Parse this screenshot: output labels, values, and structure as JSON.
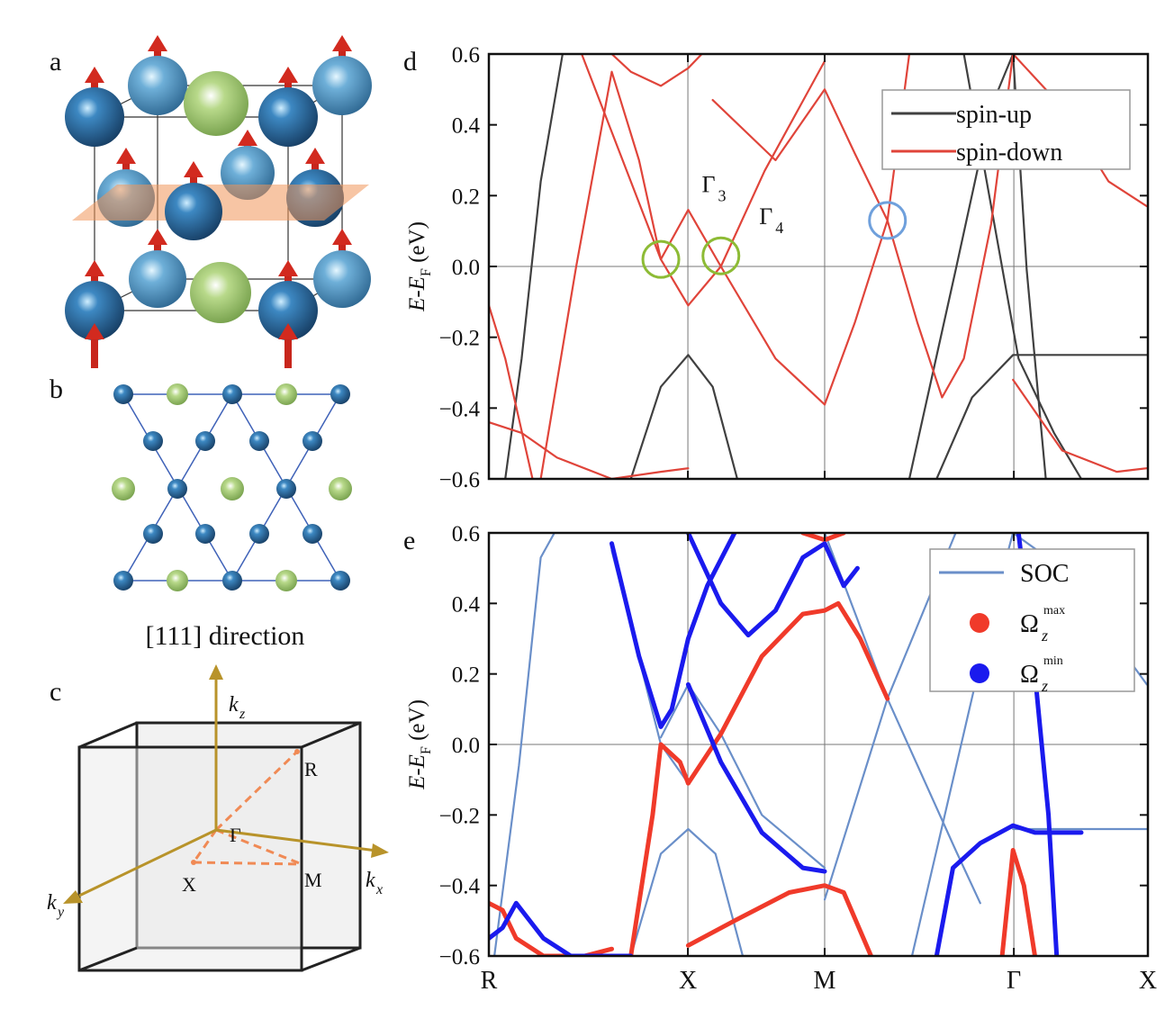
{
  "figure": {
    "panel_labels": [
      "a",
      "b",
      "c"
    ],
    "b_caption": "[111] direction",
    "c_labels": [
      {
        "base": "k",
        "sub": "z"
      },
      {
        "text": "R"
      },
      {
        "text": "Γ"
      },
      {
        "text": "X"
      },
      {
        "text": "M"
      },
      {
        "base": "k",
        "sub": "x"
      },
      {
        "base": "k",
        "sub": "y"
      }
    ]
  },
  "chart_data": [
    {
      "type": "line",
      "label": "d",
      "ylabel": {
        "text": "E-E",
        "sub": "F",
        "after": " (eV)"
      },
      "xlim": [
        0,
        2.414
      ],
      "xticks": [
        0,
        0.729,
        1.23,
        1.923,
        2.414
      ],
      "grid": "x",
      "hline": 0,
      "ylim": [
        -0.6,
        0.6
      ],
      "yticks": [
        {
          "value": -0.6,
          "label": "−0.6"
        },
        {
          "value": -0.4,
          "label": "−0.4"
        },
        {
          "value": -0.2,
          "label": "−0.2"
        },
        {
          "value": 0,
          "label": "0.0"
        },
        0.2,
        0.4,
        0.6
      ],
      "legend": "upper right",
      "series": [
        {
          "name": "spin-up",
          "color": "#404040",
          "legend_symbol": "line",
          "bands": [
            {
              "x": [
                0.06,
                0.12,
                0.19,
                0.27
              ],
              "values": [
                -0.6,
                -0.26,
                0.24,
                0.6
              ]
            },
            {
              "x": [
                0.52,
                0.63,
                0.73,
                0.82,
                0.91
              ],
              "values": [
                -0.6,
                -0.34,
                -0.25,
                -0.34,
                -0.6
              ]
            },
            {
              "x": [
                1.54,
                1.71,
                1.84,
                1.92
              ],
              "values": [
                -0.6,
                -0.01,
                0.45,
                0.6
              ]
            },
            {
              "x": [
                1.64,
                1.77,
                1.92,
                2.17,
                2.41
              ],
              "values": [
                -0.6,
                -0.37,
                -0.25,
                -0.25,
                -0.25
              ]
            },
            {
              "x": [
                1.74,
                1.84,
                1.94,
                2.07,
                2.17
              ],
              "values": [
                0.6,
                0.17,
                -0.26,
                -0.47,
                -0.6
              ]
            },
            {
              "x": [
                1.92,
                1.97,
                2.04
              ],
              "values": [
                0.6,
                -0.01,
                -0.6
              ]
            }
          ]
        },
        {
          "name": "spin-down",
          "color": "#e0443a",
          "legend_symbol": "line",
          "bands": [
            {
              "x": [
                0.19,
                0.32,
                0.45,
                0.55,
                0.63,
                0.73,
                0.85,
                1.01,
                1.23
              ],
              "values": [
                -0.6,
                0,
                0.55,
                0.3,
                0.02,
                -0.11,
                0,
                0.27,
                0.58
              ]
            },
            {
              "x": [
                0.45,
                0.52,
                0.63,
                0.73,
                0.78
              ],
              "values": [
                0.6,
                0.55,
                0.51,
                0.56,
                0.6
              ]
            },
            {
              "x": [
                0.34,
                0.52,
                0.63,
                0.73,
                0.85,
                1.05,
                1.23
              ],
              "values": [
                0.6,
                0.24,
                0.02,
                0.16,
                0,
                -0.26,
                -0.39
              ]
            },
            {
              "x": [
                0.82,
                1.05,
                1.23,
                1.34,
                1.46,
                1.57,
                1.66,
                1.74,
                1.84,
                1.92
              ],
              "values": [
                0.47,
                0.3,
                0.5,
                0.32,
                0.13,
                -0.16,
                -0.37,
                -0.26,
                0.12,
                0.6
              ]
            },
            {
              "x": [
                1.23,
                1.34,
                1.46,
                1.54
              ],
              "values": [
                -0.39,
                -0.16,
                0.13,
                0.6
              ]
            },
            {
              "x": [
                1.92,
                2.1,
                2.27,
                2.41
              ],
              "values": [
                0.6,
                0.45,
                0.24,
                0.17
              ]
            },
            {
              "x": [
                1.92,
                2.1,
                2.3,
                2.41
              ],
              "values": [
                -0.32,
                -0.52,
                -0.58,
                -0.57
              ]
            },
            {
              "x": [
                0,
                0.12,
                0.25,
                0.45,
                0.63,
                0.73
              ],
              "values": [
                -0.44,
                -0.47,
                -0.54,
                -0.6,
                -0.58,
                -0.57
              ]
            },
            {
              "x": [
                0,
                0.06,
                0.16
              ],
              "values": [
                -0.11,
                -0.26,
                -0.6
              ]
            }
          ]
        }
      ],
      "circles": [
        {
          "x": 0.63,
          "y": 0.02,
          "color": "#8dbb35"
        },
        {
          "x": 0.85,
          "y": 0.03,
          "color": "#8dbb35"
        },
        {
          "x": 1.46,
          "y": 0.13,
          "color": "#6fa0dc"
        }
      ],
      "annotations": [
        {
          "text": "Γ",
          "sub": "3",
          "x": 0.78,
          "y": 0.21
        },
        {
          "text": "Γ",
          "sub": "4",
          "x": 0.99,
          "y": 0.12
        }
      ]
    },
    {
      "type": "line",
      "label": "e",
      "ylabel": {
        "text": "E-E",
        "sub": "F",
        "after": " (eV)"
      },
      "xlim": [
        0,
        2.414
      ],
      "xticks": [
        {
          "value": 0,
          "label": "R"
        },
        {
          "value": 0.729,
          "label": "X"
        },
        {
          "value": 1.23,
          "label": "M"
        },
        {
          "value": 1.923,
          "label": "Γ"
        },
        {
          "value": 2.414,
          "label": "X"
        }
      ],
      "grid": "x",
      "hline": 0,
      "ylim": [
        -0.6,
        0.6
      ],
      "yticks": [
        {
          "value": -0.6,
          "label": "−0.6"
        },
        {
          "value": -0.4,
          "label": "−0.4"
        },
        {
          "value": -0.2,
          "label": "−0.2"
        },
        {
          "value": 0,
          "label": "0.0"
        },
        0.2,
        0.4,
        0.6
      ],
      "legend": "upper right",
      "series": [
        {
          "name": "SOC",
          "color": "#6a8fc9",
          "legend_symbol": "line",
          "bands": [
            {
              "x": [
                0.02,
                0.11,
                0.19,
                0.24
              ],
              "values": [
                -0.6,
                -0.06,
                0.53,
                0.6
              ]
            },
            {
              "x": [
                0.52,
                0.63,
                0.73,
                0.83,
                0.93
              ],
              "values": [
                -0.6,
                -0.31,
                -0.24,
                -0.31,
                -0.6
              ]
            },
            {
              "x": [
                0.45,
                0.63,
                0.73,
                0.85
              ],
              "values": [
                0.55,
                0,
                -0.11,
                0.03
              ]
            },
            {
              "x": [
                0.63,
                0.73,
                0.85,
                1.0,
                1.23
              ],
              "values": [
                0.02,
                0.17,
                0.03,
                -0.2,
                -0.35
              ]
            },
            {
              "x": [
                1.23,
                1.46,
                1.71
              ],
              "values": [
                -0.44,
                0.13,
                0.6
              ]
            },
            {
              "x": [
                1.23,
                1.46,
                1.71,
                1.8
              ],
              "values": [
                0.6,
                0.13,
                -0.3,
                -0.45
              ]
            },
            {
              "x": [
                1.92,
                2.17,
                2.41
              ],
              "values": [
                -0.24,
                -0.24,
                -0.24
              ]
            },
            {
              "x": [
                1.92,
                2.1,
                2.41
              ],
              "values": [
                0.6,
                0.5,
                0.17
              ]
            },
            {
              "x": [
                1.55,
                1.7,
                1.85,
                1.92
              ],
              "values": [
                -0.6,
                -0.1,
                0.4,
                0.6
              ]
            }
          ]
        },
        {
          "name": "Ω",
          "name_sub": "z",
          "name_sup": "max",
          "color": "#f03a2a",
          "legend_symbol": "dot",
          "bands": [
            {
              "x": [
                0.52,
                0.6,
                0.63,
                0.7,
                0.73
              ],
              "values": [
                -0.6,
                -0.2,
                0,
                -0.05,
                -0.11
              ]
            },
            {
              "x": [
                0.73,
                0.85,
                1.0,
                1.15,
                1.23,
                1.28,
                1.36,
                1.46
              ],
              "values": [
                -0.11,
                0.03,
                0.25,
                0.37,
                0.38,
                0.4,
                0.3,
                0.13
              ]
            },
            {
              "x": [
                0.73,
                0.9,
                1.1,
                1.23,
                1.3,
                1.4
              ],
              "values": [
                -0.57,
                -0.5,
                -0.42,
                -0.4,
                -0.42,
                -0.6
              ]
            },
            {
              "x": [
                0,
                0.05,
                0.1,
                0.2,
                0.35,
                0.45
              ],
              "values": [
                -0.45,
                -0.47,
                -0.55,
                -0.6,
                -0.6,
                -0.58
              ]
            },
            {
              "x": [
                1.88,
                1.92,
                1.96,
                2.0
              ],
              "values": [
                -0.6,
                -0.3,
                -0.4,
                -0.6
              ]
            },
            {
              "x": [
                1.15,
                1.23,
                1.3
              ],
              "values": [
                0.6,
                0.58,
                0.6
              ]
            }
          ]
        },
        {
          "name": "Ω",
          "name_sub": "z",
          "name_sup": "min",
          "color": "#1a1aee",
          "legend_symbol": "dot",
          "bands": [
            {
              "x": [
                0.45,
                0.55,
                0.63,
                0.67,
                0.73,
                0.8,
                0.9
              ],
              "values": [
                0.57,
                0.25,
                0.05,
                0.1,
                0.3,
                0.45,
                0.6
              ]
            },
            {
              "x": [
                0.73,
                0.85,
                0.95,
                1.05,
                1.15,
                1.23,
                1.3,
                1.35
              ],
              "values": [
                0.6,
                0.4,
                0.31,
                0.38,
                0.53,
                0.57,
                0.45,
                0.5
              ]
            },
            {
              "x": [
                0.73,
                0.85,
                1.0,
                1.15,
                1.23
              ],
              "values": [
                0.17,
                -0.05,
                -0.25,
                -0.35,
                -0.36
              ]
            },
            {
              "x": [
                1.64,
                1.7,
                1.8,
                1.92,
                2.0,
                2.1,
                2.17
              ],
              "values": [
                -0.6,
                -0.35,
                -0.28,
                -0.23,
                -0.25,
                -0.25,
                -0.25
              ]
            },
            {
              "x": [
                1.94,
                2.0,
                2.05,
                2.08
              ],
              "values": [
                0.6,
                0.2,
                -0.2,
                -0.6
              ]
            },
            {
              "x": [
                0,
                0.05,
                0.1,
                0.2,
                0.3,
                0.4,
                0.52
              ],
              "values": [
                -0.55,
                -0.52,
                -0.45,
                -0.55,
                -0.6,
                -0.6,
                -0.6
              ]
            }
          ]
        }
      ]
    }
  ]
}
